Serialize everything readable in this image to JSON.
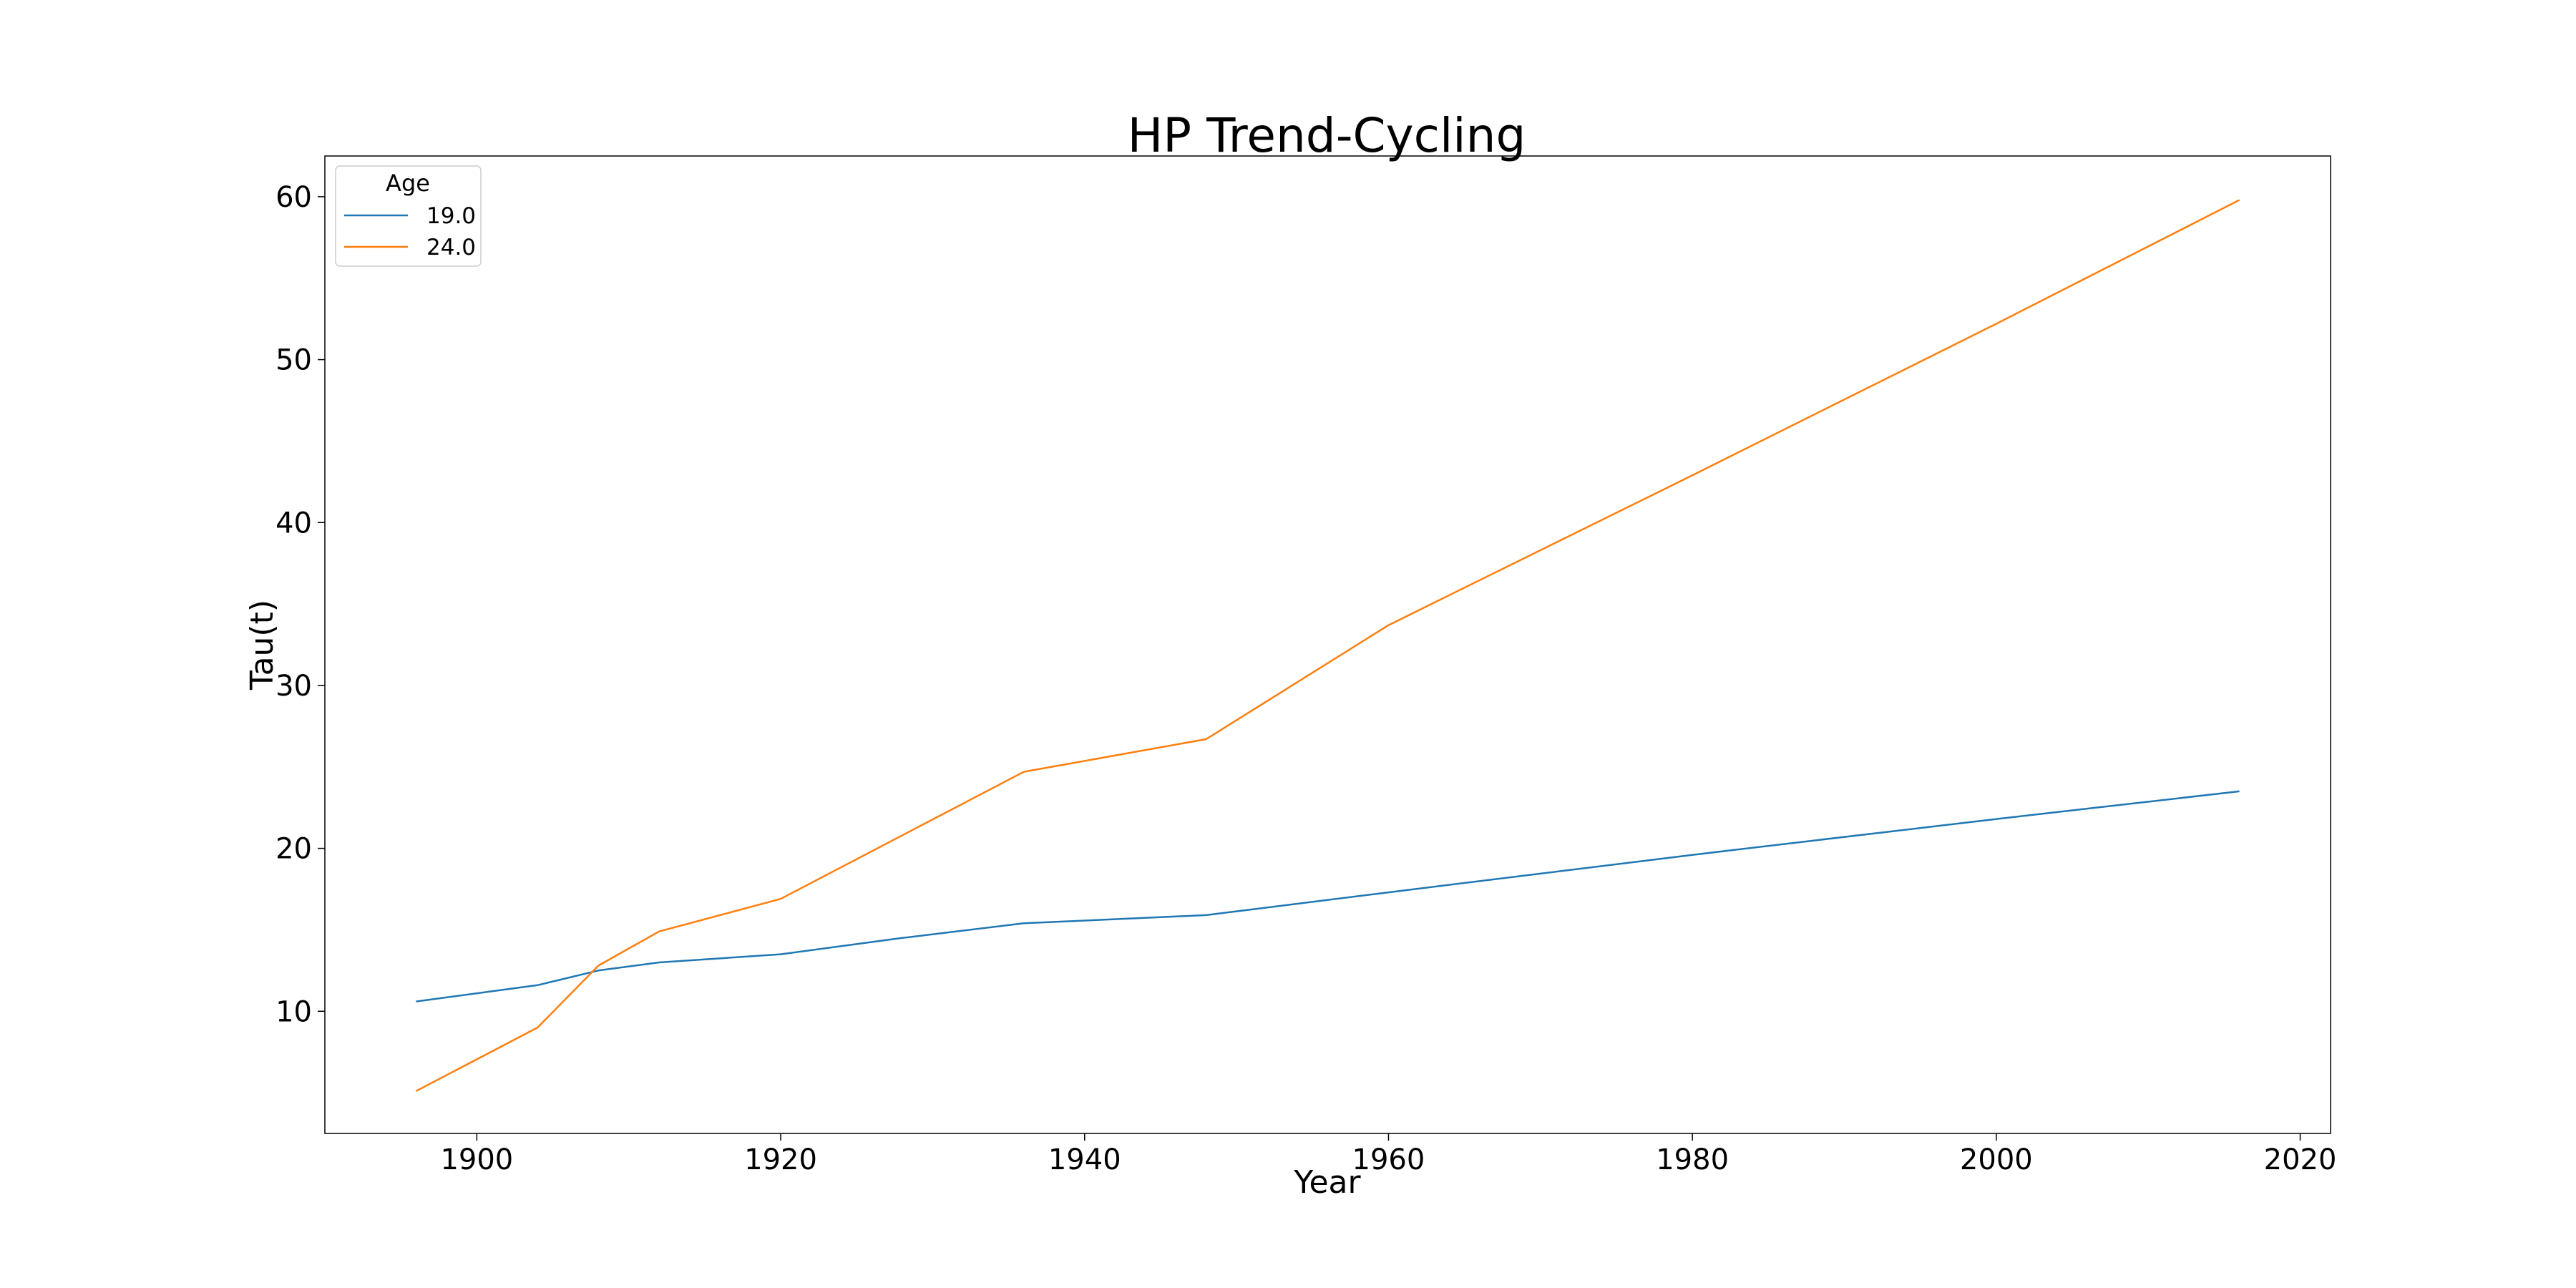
{
  "chart_data": {
    "type": "line",
    "title": "HP Trend-Cycling",
    "xlabel": "Year",
    "ylabel": "Tau(t)",
    "xlim": [
      1890,
      2022
    ],
    "ylim": [
      2.5,
      62.5
    ],
    "xticks": [
      1900,
      1920,
      1940,
      1960,
      1980,
      2000,
      2020
    ],
    "yticks": [
      10,
      20,
      30,
      40,
      50,
      60
    ],
    "grid": false,
    "legend": {
      "title": "Age",
      "placement": "top-left"
    },
    "series": [
      {
        "name": "19.0",
        "color": "#1f77b4",
        "points": [
          [
            1896,
            10.6
          ],
          [
            1904,
            11.6
          ],
          [
            1908,
            12.5
          ],
          [
            1912,
            13.0
          ],
          [
            1920,
            13.5
          ],
          [
            1928,
            14.5
          ],
          [
            1936,
            15.4
          ],
          [
            1948,
            15.9
          ],
          [
            1960,
            17.3
          ],
          [
            1980,
            19.6
          ],
          [
            2000,
            21.8
          ],
          [
            2016,
            23.5
          ]
        ]
      },
      {
        "name": "24.0",
        "color": "#ff7f0e",
        "points": [
          [
            1896,
            5.1
          ],
          [
            1904,
            9.0
          ],
          [
            1908,
            12.8
          ],
          [
            1912,
            14.9
          ],
          [
            1920,
            16.9
          ],
          [
            1936,
            24.7
          ],
          [
            1948,
            26.7
          ],
          [
            1960,
            33.7
          ],
          [
            1980,
            42.9
          ],
          [
            2000,
            52.2
          ],
          [
            2016,
            59.8
          ]
        ]
      }
    ]
  }
}
